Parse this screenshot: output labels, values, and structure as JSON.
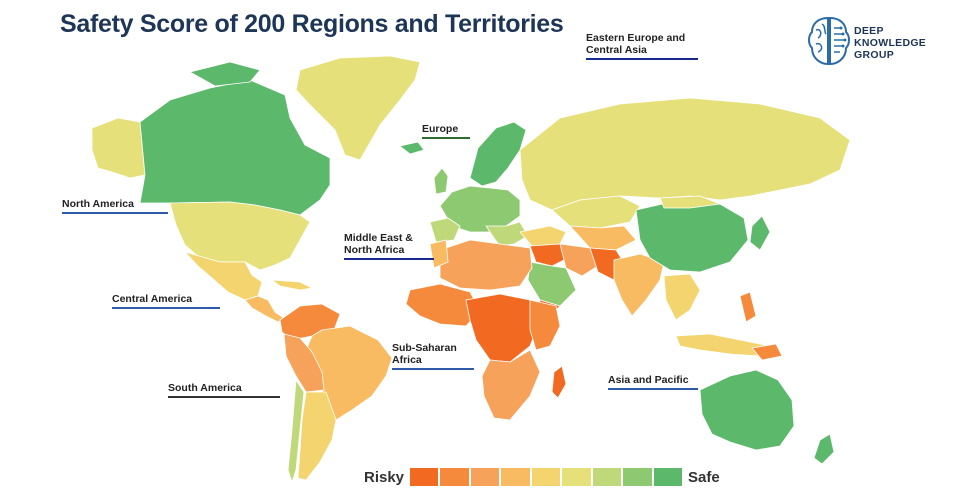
{
  "title": "Safety Score of 200 Regions and Territories",
  "logo": {
    "lines": [
      "DEEP",
      "KNOWLEDGE",
      "GROUP"
    ],
    "icon": "brain-icon",
    "color": "#1d3557"
  },
  "regions": [
    {
      "id": "north-america",
      "lines": [
        "North America"
      ],
      "underline": "#2e5aa8"
    },
    {
      "id": "central-america",
      "lines": [
        "Central America"
      ],
      "underline": "#2e5aa8"
    },
    {
      "id": "south-america",
      "lines": [
        "South America"
      ],
      "underline": "#333333"
    },
    {
      "id": "europe",
      "lines": [
        "Europe"
      ],
      "underline": "#2e6b2e"
    },
    {
      "id": "eastern-europe-central-asia",
      "lines": [
        "Eastern Europe and",
        "Central Asia"
      ],
      "underline": "#1a2a8a"
    },
    {
      "id": "middle-east-north-africa",
      "lines": [
        "Middle East &",
        "North Africa"
      ],
      "underline": "#1a2a8a"
    },
    {
      "id": "sub-saharan-africa",
      "lines": [
        "Sub-Saharan",
        "Africa"
      ],
      "underline": "#2e5aa8"
    },
    {
      "id": "asia-pacific",
      "lines": [
        "Asia and Pacific"
      ],
      "underline": "#2e5aa8"
    }
  ],
  "legend": {
    "low_label": "Risky",
    "high_label": "Safe",
    "scale_colors": [
      "#f26a21",
      "#f68a3c",
      "#f7a25a",
      "#f8bb62",
      "#f3d46e",
      "#e6e07a",
      "#bfd97a",
      "#8dc971",
      "#5cb86a"
    ]
  },
  "colors": {
    "title": "#1d3557",
    "safe": "#5cb86a",
    "risky": "#f26a21",
    "mid": "#e6e07a",
    "water": "#ffffff"
  }
}
